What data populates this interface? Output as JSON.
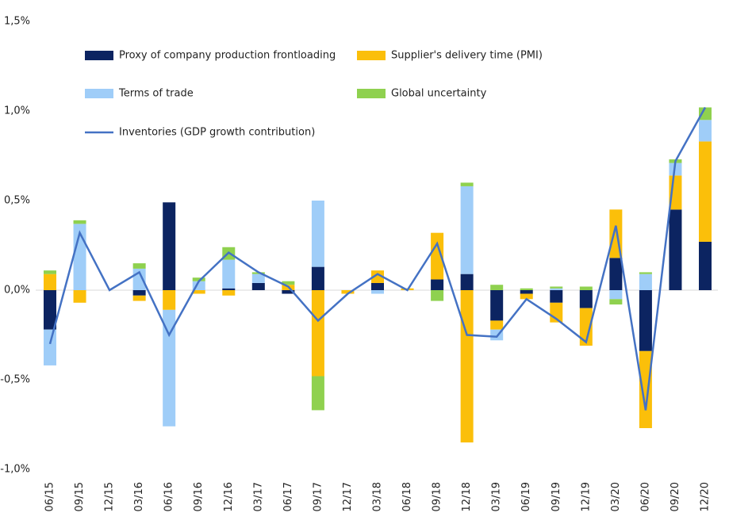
{
  "chart_data": {
    "type": "bar",
    "categories": [
      "06/15",
      "09/15",
      "12/15",
      "03/16",
      "06/16",
      "09/16",
      "12/16",
      "03/17",
      "06/17",
      "09/17",
      "12/17",
      "03/18",
      "06/18",
      "09/18",
      "12/18",
      "03/19",
      "06/19",
      "09/19",
      "12/19",
      "03/20",
      "06/20",
      "09/20",
      "12/20"
    ],
    "series": [
      {
        "name": "Proxy of company production frontloading",
        "color": "#0c2461",
        "values": [
          -0.22,
          0,
          0,
          -0.03,
          0.49,
          0,
          0.01,
          0.04,
          -0.02,
          0.13,
          0,
          0.04,
          0,
          0.06,
          0.09,
          -0.17,
          -0.02,
          -0.07,
          -0.1,
          0.18,
          -0.34,
          0.45,
          0.27
        ]
      },
      {
        "name": "Supplier's delivery time (PMI)",
        "color": "#fbbf0a",
        "values": [
          0.09,
          -0.07,
          0,
          -0.03,
          -0.11,
          -0.02,
          -0.03,
          0,
          0.03,
          -0.48,
          -0.02,
          0.07,
          0.01,
          0.26,
          -0.85,
          -0.05,
          -0.03,
          -0.11,
          -0.21,
          0.27,
          -0.43,
          0.19,
          0.56
        ]
      },
      {
        "name": "Terms of trade",
        "color": "#9fcdf8",
        "values": [
          -0.2,
          0.37,
          0,
          0.12,
          -0.65,
          0.05,
          0.16,
          0.05,
          0,
          0.37,
          0,
          -0.02,
          0,
          0,
          0.49,
          -0.06,
          0,
          0.01,
          0,
          -0.05,
          0.09,
          0.07,
          0.12
        ]
      },
      {
        "name": "Global uncertainty",
        "color": "#8fd14f",
        "values": [
          0.02,
          0.02,
          0,
          0.03,
          0,
          0.02,
          0.07,
          0.01,
          0.02,
          -0.19,
          0,
          0,
          0,
          -0.06,
          0.02,
          0.03,
          0.01,
          0.01,
          0.02,
          -0.03,
          0.01,
          0.02,
          0.07
        ]
      }
    ],
    "line": {
      "name": "Inventories (GDP growth contribution)",
      "color": "#4472c4",
      "values": [
        -0.3,
        0.32,
        0,
        0.1,
        -0.25,
        0.05,
        0.21,
        0.1,
        0.02,
        -0.17,
        -0.02,
        0.09,
        0,
        0.26,
        -0.25,
        -0.26,
        -0.05,
        -0.16,
        -0.29,
        0.36,
        -0.67,
        0.72,
        1.02
      ]
    },
    "ylim": [
      -1.0,
      1.5
    ],
    "yticks": [
      {
        "value": -1.0,
        "label": "-1,0%"
      },
      {
        "value": -0.5,
        "label": "-0,5%"
      },
      {
        "value": 0,
        "label": "0,0%"
      },
      {
        "value": 0.5,
        "label": "0,5%"
      },
      {
        "value": 1.0,
        "label": "1,0%"
      },
      {
        "value": 1.5,
        "label": "1,5%"
      }
    ]
  }
}
